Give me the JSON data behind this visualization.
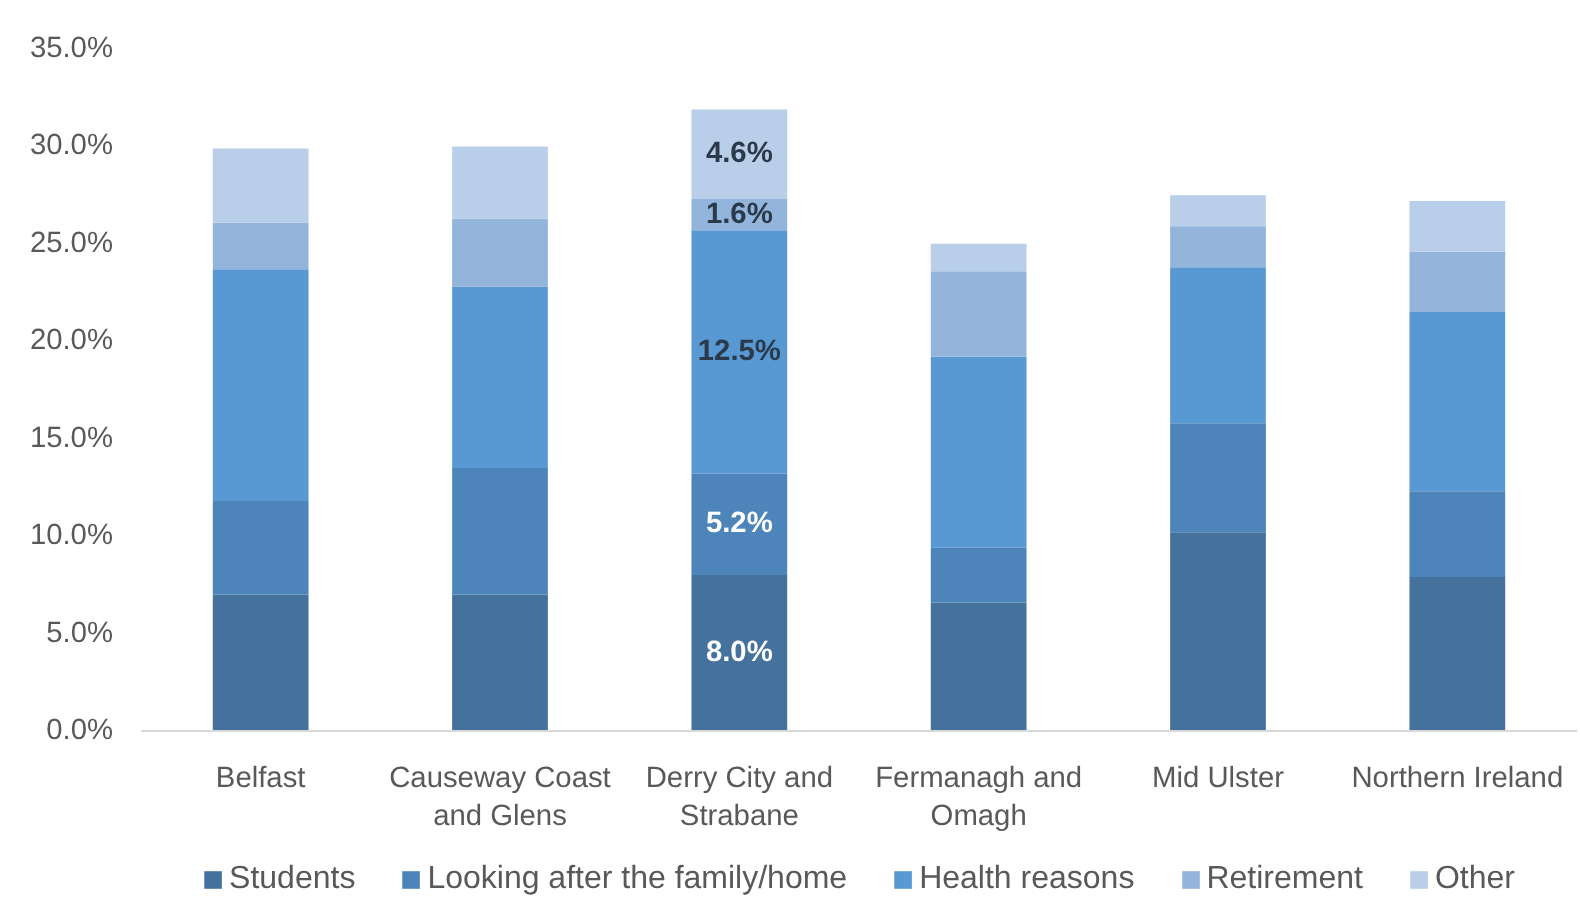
{
  "chart_data": {
    "type": "bar",
    "stacked": true,
    "categories": [
      "Belfast",
      "Causeway Coast and Glens",
      "Derry City and Strabane",
      "Fermanagh and Omagh",
      "Mid Ulster",
      "Northern Ireland"
    ],
    "series": [
      {
        "name": "Students",
        "color": "#44729d",
        "values": [
          7.0,
          7.0,
          8.0,
          6.6,
          10.2,
          7.9
        ],
        "value_labels": [
          null,
          null,
          "8.0%",
          null,
          null,
          null
        ]
      },
      {
        "name": "Looking after the family/home",
        "color": "#4d85ba",
        "values": [
          4.8,
          6.5,
          5.2,
          2.8,
          5.6,
          4.4
        ],
        "value_labels": [
          null,
          null,
          "5.2%",
          null,
          null,
          null
        ]
      },
      {
        "name": "Health reasons",
        "color": "#5899d4",
        "values": [
          11.9,
          9.3,
          12.5,
          9.8,
          8.0,
          9.2
        ],
        "value_labels": [
          null,
          null,
          "12.5%",
          null,
          null,
          null
        ]
      },
      {
        "name": "Retirement",
        "color": "#93b4db",
        "values": [
          2.4,
          3.5,
          1.6,
          4.4,
          2.1,
          3.1
        ],
        "value_labels": [
          null,
          null,
          "1.6%",
          null,
          null,
          null
        ]
      },
      {
        "name": "Other",
        "color": "#b9cfe9",
        "values": [
          3.8,
          3.7,
          4.6,
          1.4,
          1.6,
          2.6
        ],
        "value_labels": [
          null,
          null,
          "4.6%",
          null,
          null,
          null
        ]
      }
    ],
    "ylim": [
      0,
      35
    ],
    "yticks": [
      {
        "value": 0,
        "label": "0.0%"
      },
      {
        "value": 5,
        "label": "5.0%"
      },
      {
        "value": 10,
        "label": "10.0%"
      },
      {
        "value": 15,
        "label": "15.0%"
      },
      {
        "value": 20,
        "label": "20.0%"
      },
      {
        "value": 25,
        "label": "25.0%"
      },
      {
        "value": 30,
        "label": "30.0%"
      },
      {
        "value": 35,
        "label": "35.0%"
      }
    ],
    "legend": "bottom"
  }
}
